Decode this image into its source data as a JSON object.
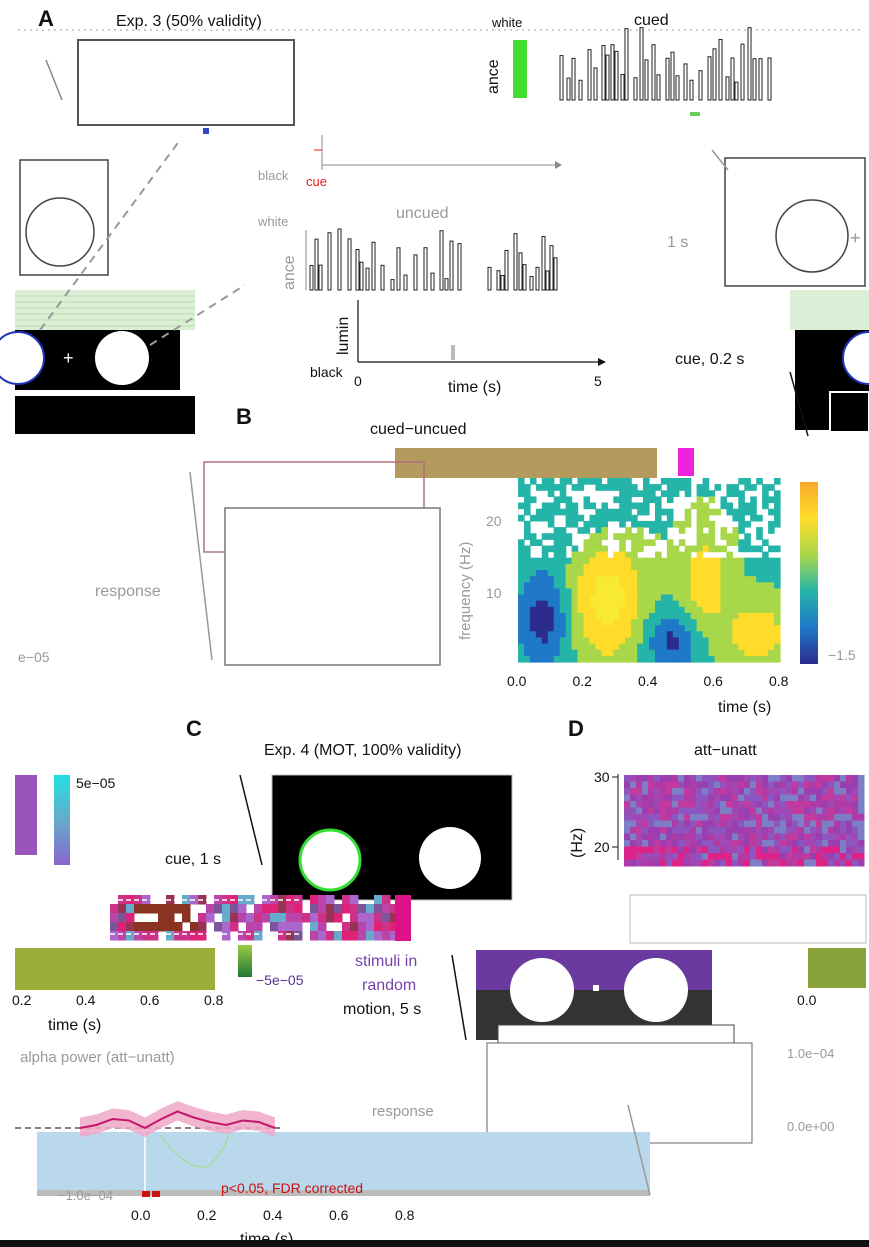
{
  "panels": {
    "A": {
      "letter": "A",
      "title": "Exp. 3 (50% validity)",
      "cued_label": "cued",
      "uncued_label": "uncued",
      "white_label": "white",
      "black_label": "black",
      "ylabel_fragment": "ance",
      "ylabel_lumin": "lumin",
      "cue_mark": "cue",
      "xlabel": "time (s)",
      "xticks": [
        "0",
        "5"
      ],
      "interval_label": "1 s",
      "cue_duration_label": "cue, 0.2 s",
      "response_label": "response",
      "value_fragment": "e−05",
      "fixation": "+",
      "colors": {
        "cue": "#e02020",
        "cued_bar": "#44dd33"
      }
    },
    "B": {
      "letter": "B",
      "title": "cued−uncued",
      "ylabel": "frequency (Hz)",
      "xlabel": "time (s)",
      "xticks": [
        "0.0",
        "0.2",
        "0.4",
        "0.6",
        "0.8"
      ],
      "yticks": [
        "10",
        "20"
      ],
      "colorbar_min_fragment": "−1.5",
      "colormap": [
        "#2c2c8c",
        "#1f78c8",
        "#25b5a8",
        "#a8d84a",
        "#ffdc2a",
        "#f8ea30"
      ]
    },
    "C": {
      "letter": "C",
      "title": "Exp. 4 (MOT, 100% validity)",
      "cue_label": "cue, 1 s",
      "stimuli_label_1": "stimuli in",
      "stimuli_label_2": "random",
      "stimuli_label_3": "motion, 5 s",
      "response_label": "response",
      "colorbar_max": "5e−05",
      "colorbar_min": "−5e−05",
      "xlabel": "time (s)",
      "xticks": [
        "0.2",
        "0.4",
        "0.6",
        "0.8"
      ]
    },
    "D": {
      "letter": "D",
      "title": "att−unatt",
      "ylabel_fragment": "(Hz)",
      "yticks": [
        "20",
        "30"
      ],
      "xticks": [
        "0.0"
      ],
      "right_tick_top": "1.0e−04",
      "right_tick_mid": "0.0e+00"
    },
    "E": {
      "title": "alpha power (att−unatt)",
      "xlabel": "time (s)",
      "xticks": [
        "0.0",
        "0.2",
        "0.4",
        "0.6",
        "0.8"
      ],
      "ytick_low": "−1.0e−04",
      "significance_label": "p<0.05, FDR corrected",
      "colors": {
        "line": "#c2186b",
        "band": "#f0a8c8",
        "sig": "#cc1111"
      }
    }
  },
  "chart_data": [
    {
      "type": "heatmap",
      "title": "cued−uncued",
      "xlabel": "time (s)",
      "ylabel": "frequency (Hz)",
      "xlim": [
        0.0,
        0.8
      ],
      "ylim": [
        2,
        28
      ],
      "xticks": [
        0.0,
        0.2,
        0.4,
        0.6,
        0.8
      ],
      "yticks": [
        10,
        20
      ]
    },
    {
      "type": "line",
      "title": "alpha power (att−unatt)",
      "xlabel": "time (s)",
      "xlim": [
        -0.5,
        1.2
      ],
      "x": [
        -0.2,
        -0.15,
        -0.1,
        -0.05,
        0.0,
        0.05,
        0.1,
        0.15,
        0.2,
        0.25,
        0.3,
        0.35,
        0.4
      ],
      "y": [
        0.0,
        0.1,
        0.3,
        0.25,
        0.0,
        0.3,
        0.55,
        0.35,
        0.2,
        0.1,
        0.25,
        0.2,
        0.0
      ]
    }
  ]
}
